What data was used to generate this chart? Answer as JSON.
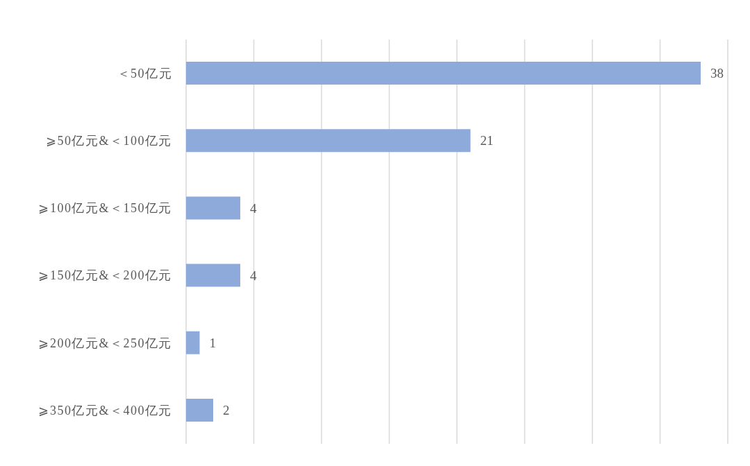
{
  "chart_data": {
    "type": "bar",
    "orientation": "horizontal",
    "categories": [
      "＜50亿元",
      "⩾50亿元&＜100亿元",
      "⩾100亿元&＜150亿元",
      "⩾150亿元&＜200亿元",
      "⩾200亿元&＜250亿元",
      "⩾350亿元&＜400亿元"
    ],
    "values": [
      38,
      21,
      4,
      4,
      1,
      2
    ],
    "color": "#8eaadb",
    "xlim": [
      0,
      40
    ],
    "xticks": [
      {
        "value": 0,
        "label": null
      },
      {
        "value": 5,
        "label": null
      },
      {
        "value": 10,
        "label": null
      },
      {
        "value": 15,
        "label": null
      },
      {
        "value": 20,
        "label": null
      },
      {
        "value": 25,
        "label": null
      },
      {
        "value": 30,
        "label": null
      },
      {
        "value": 35,
        "label": null
      },
      {
        "value": 40,
        "label": null
      }
    ],
    "grid": "x",
    "data_labels": true,
    "tick_labels": "y"
  }
}
